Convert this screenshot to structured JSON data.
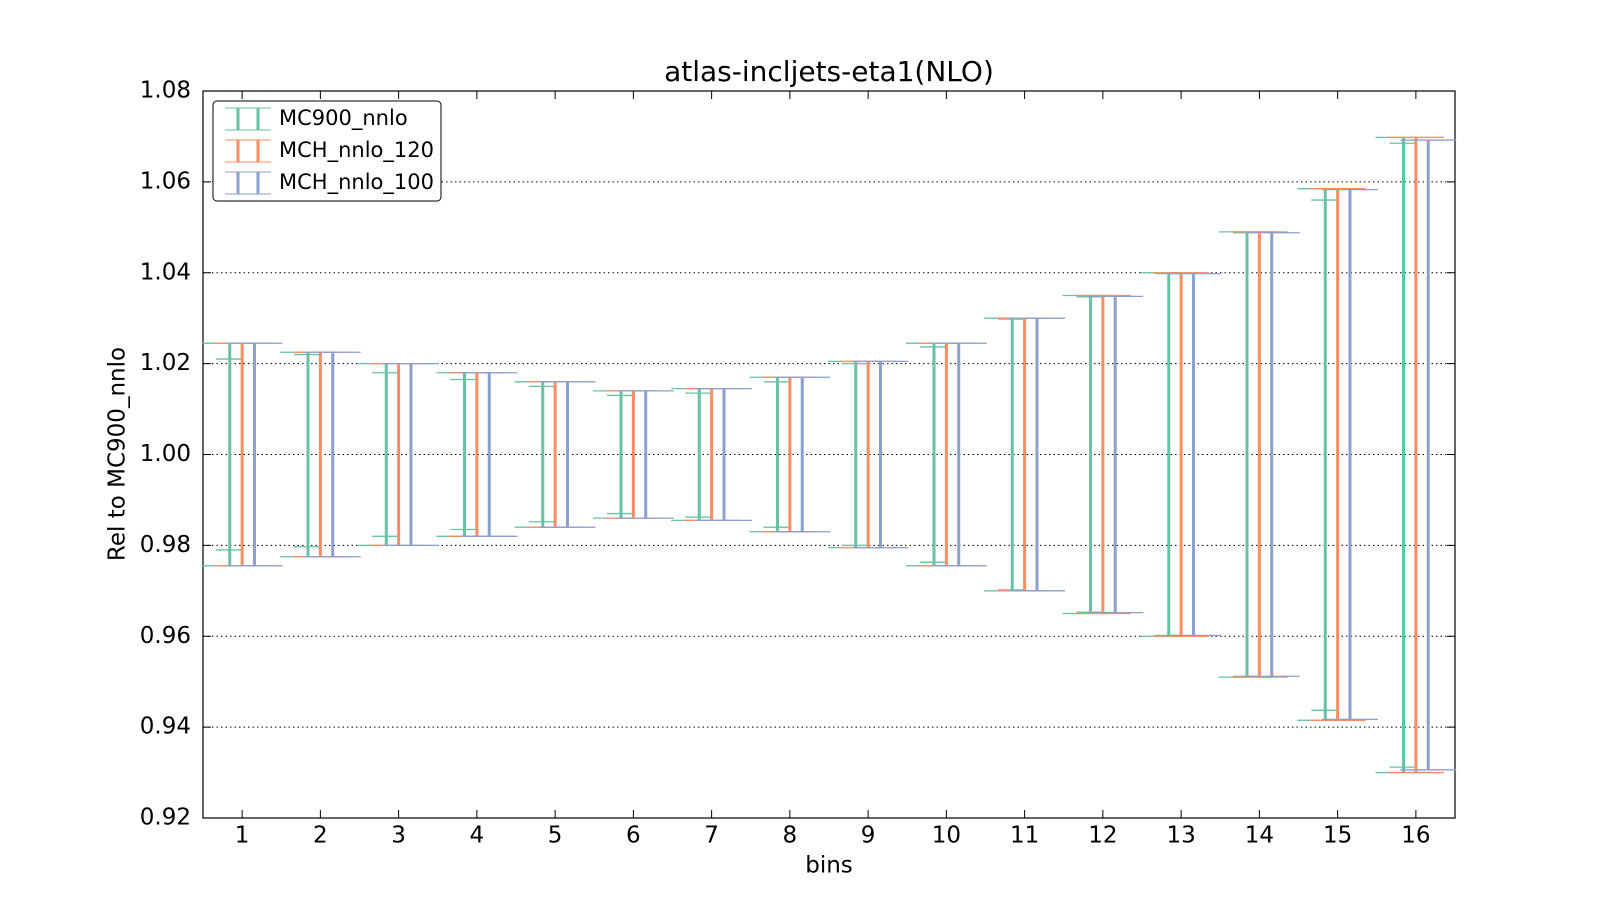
{
  "chart_data": {
    "type": "errorbar",
    "title": "atlas-incljets-eta1(NLO)",
    "xlabel": "bins",
    "ylabel": "Rel to MC900_nnlo",
    "categories": [
      "1",
      "2",
      "3",
      "4",
      "5",
      "6",
      "7",
      "8",
      "9",
      "10",
      "11",
      "12",
      "13",
      "14",
      "15",
      "16"
    ],
    "ylim": [
      0.92,
      1.08
    ],
    "yticks": [
      {
        "value": 0.92,
        "label": "0.92"
      },
      {
        "value": 0.94,
        "label": "0.94"
      },
      {
        "value": 0.96,
        "label": "0.96"
      },
      {
        "value": 0.98,
        "label": "0.98"
      },
      {
        "value": 1.0,
        "label": "1.00"
      },
      {
        "value": 1.02,
        "label": "1.02"
      },
      {
        "value": 1.04,
        "label": "1.04"
      },
      {
        "value": 1.06,
        "label": "1.06"
      },
      {
        "value": 1.08,
        "label": "1.08"
      }
    ],
    "grid": true,
    "legend": "upper-left",
    "series": [
      {
        "name": "MC900_nnlo",
        "color": "#66c2a5",
        "high": [
          1.0245,
          1.0225,
          1.02,
          1.018,
          1.016,
          1.014,
          1.0145,
          1.017,
          1.0205,
          1.0245,
          1.03,
          1.035,
          1.04,
          1.049,
          1.0585,
          1.0698
        ],
        "low": [
          0.9755,
          0.9775,
          0.98,
          0.982,
          0.984,
          0.986,
          0.9855,
          0.983,
          0.9795,
          0.9755,
          0.97,
          0.965,
          0.96,
          0.951,
          0.9415,
          0.93
        ],
        "high_inner": [
          1.021,
          1.022,
          1.018,
          1.0165,
          1.015,
          1.013,
          1.0135,
          1.016,
          1.02,
          1.0237,
          1.0298,
          1.0347,
          1.0398,
          1.0488,
          1.056,
          1.0685
        ],
        "low_inner": [
          0.979,
          0.9797,
          0.982,
          0.9835,
          0.9852,
          0.987,
          0.9862,
          0.984,
          0.98,
          0.9763,
          0.9702,
          0.9653,
          0.9602,
          0.9512,
          0.9437,
          0.9312
        ]
      },
      {
        "name": "MCH_nnlo_120",
        "color": "#fc8d62",
        "high": [
          1.0245,
          1.0225,
          1.02,
          1.018,
          1.016,
          1.014,
          1.0145,
          1.017,
          1.0205,
          1.0245,
          1.03,
          1.035,
          1.04,
          1.049,
          1.0585,
          1.0698
        ],
        "low": [
          0.9755,
          0.9775,
          0.98,
          0.982,
          0.984,
          0.986,
          0.9855,
          0.983,
          0.9795,
          0.9755,
          0.97,
          0.965,
          0.96,
          0.951,
          0.9415,
          0.93
        ]
      },
      {
        "name": "MCH_nnlo_100",
        "color": "#8da0cb",
        "high": [
          1.0245,
          1.0225,
          1.02,
          1.018,
          1.016,
          1.014,
          1.0145,
          1.017,
          1.0205,
          1.0245,
          1.03,
          1.0348,
          1.0398,
          1.0488,
          1.0583,
          1.0692
        ],
        "low": [
          0.9755,
          0.9775,
          0.98,
          0.982,
          0.984,
          0.986,
          0.9855,
          0.983,
          0.9795,
          0.9755,
          0.97,
          0.9652,
          0.9602,
          0.9512,
          0.9417,
          0.9306
        ]
      }
    ]
  }
}
